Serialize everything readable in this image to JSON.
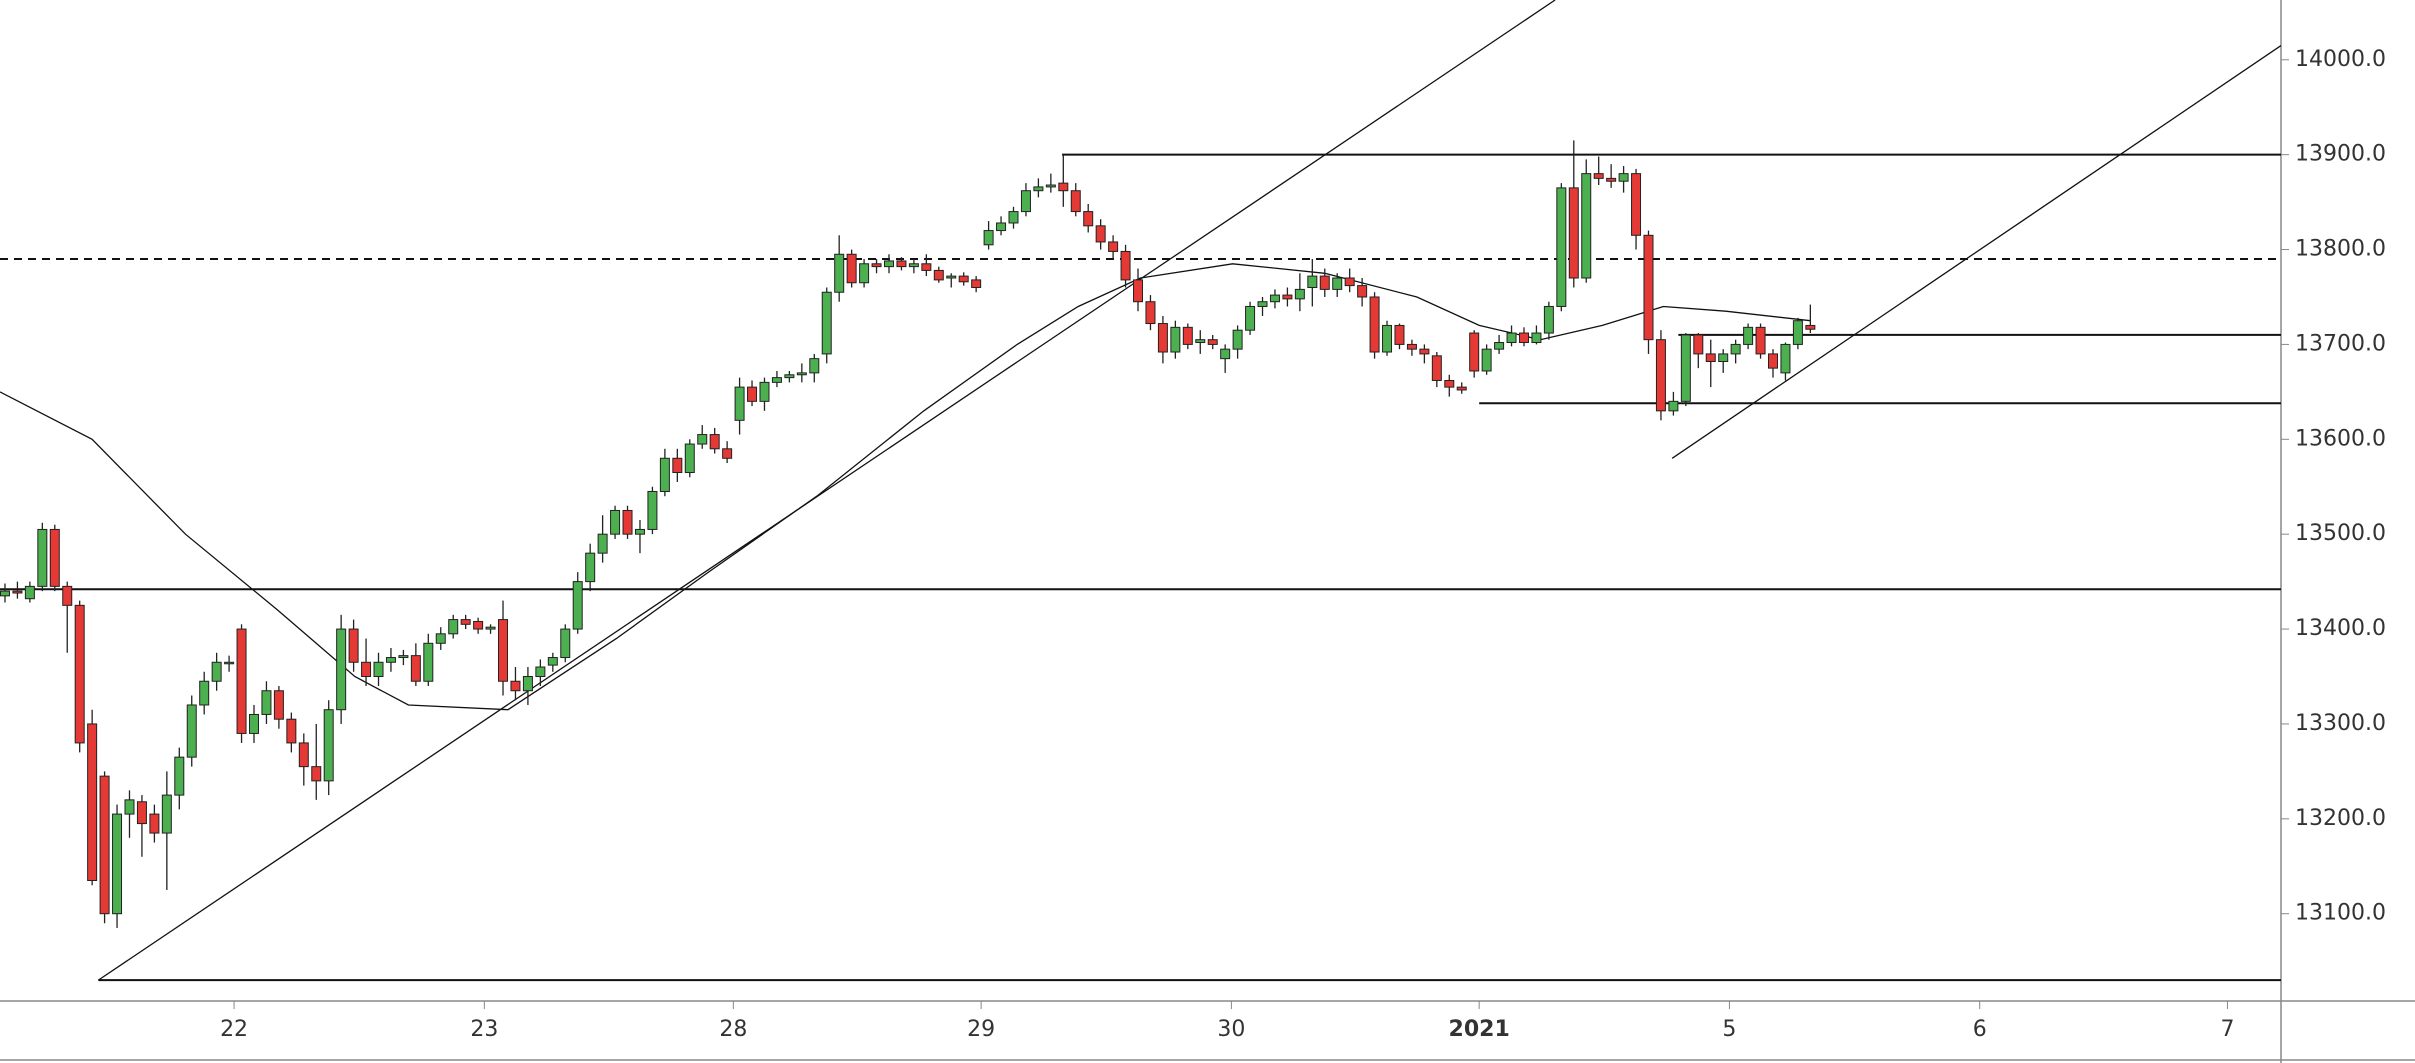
{
  "chart_data": {
    "type": "candlestick",
    "colors": {
      "up": "#4caf50",
      "down": "#e53935",
      "outline": "#222222",
      "line": "#111111"
    },
    "xlim": [
      -0.4,
      182.8
    ],
    "ylim": [
      13008,
      14063
    ],
    "xticks": [
      {
        "value": 18.4,
        "label": "22"
      },
      {
        "value": 38.5,
        "label": "23"
      },
      {
        "value": 58.5,
        "label": "28"
      },
      {
        "value": 78.4,
        "label": "29"
      },
      {
        "value": 98.5,
        "label": "30"
      },
      {
        "value": 118.4,
        "label": "2021"
      },
      {
        "value": 138.5,
        "label": "5"
      },
      {
        "value": 158.6,
        "label": "6"
      },
      {
        "value": 178.5,
        "label": "7"
      }
    ],
    "yticks": [
      {
        "value": 13100,
        "label": "13100.0"
      },
      {
        "value": 13200,
        "label": "13200.0"
      },
      {
        "value": 13300,
        "label": "13300.0"
      },
      {
        "value": 13400,
        "label": "13400.0"
      },
      {
        "value": 13500,
        "label": "13500.0"
      },
      {
        "value": 13600,
        "label": "13600.0"
      },
      {
        "value": 13700,
        "label": "13700.0"
      },
      {
        "value": 13800,
        "label": "13800.0"
      },
      {
        "value": 13900,
        "label": "13900.0"
      },
      {
        "value": 14000,
        "label": "14000.0"
      }
    ],
    "x": [
      0,
      1,
      2,
      3,
      4,
      5,
      6,
      7,
      8,
      9,
      10,
      11,
      12,
      13,
      14,
      15,
      16,
      17,
      18,
      19,
      20,
      21,
      22,
      23,
      24,
      25,
      26,
      27,
      28,
      29,
      30,
      31,
      32,
      33,
      34,
      35,
      36,
      37,
      38,
      39,
      40,
      41,
      42,
      43,
      44,
      45,
      46,
      47,
      48,
      49,
      50,
      51,
      52,
      53,
      54,
      55,
      56,
      57,
      58,
      59,
      60,
      61,
      62,
      63,
      64,
      65,
      66,
      67,
      68,
      69,
      70,
      71,
      72,
      73,
      74,
      75,
      76,
      77,
      78,
      79,
      80,
      81,
      82,
      83,
      84,
      85,
      86,
      87,
      88,
      89,
      90,
      91,
      92,
      93,
      94,
      95,
      96,
      97,
      98,
      99,
      100,
      101,
      102,
      103,
      104,
      105,
      106,
      107,
      108,
      109,
      110,
      111,
      112,
      113,
      114,
      115,
      116,
      117,
      118,
      119,
      120,
      121,
      122,
      123,
      124,
      125,
      126,
      127,
      128,
      129,
      130,
      131,
      132,
      133,
      134,
      135,
      136,
      137,
      138,
      139,
      140,
      141,
      142,
      143,
      144,
      145
    ],
    "candles": [
      [
        13435,
        13448,
        13428,
        13440
      ],
      [
        13440,
        13450,
        13432,
        13438
      ],
      [
        13432,
        13450,
        13428,
        13445
      ],
      [
        13445,
        13512,
        13440,
        13505
      ],
      [
        13505,
        13510,
        13440,
        13445
      ],
      [
        13445,
        13450,
        13375,
        13425
      ],
      [
        13425,
        13430,
        13270,
        13280
      ],
      [
        13300,
        13315,
        13130,
        13135
      ],
      [
        13245,
        13250,
        13090,
        13100
      ],
      [
        13100,
        13215,
        13085,
        13205
      ],
      [
        13205,
        13230,
        13180,
        13220
      ],
      [
        13218,
        13225,
        13160,
        13195
      ],
      [
        13205,
        13215,
        13175,
        13185
      ],
      [
        13185,
        13250,
        13125,
        13225
      ],
      [
        13225,
        13275,
        13210,
        13265
      ],
      [
        13265,
        13330,
        13255,
        13320
      ],
      [
        13320,
        13355,
        13310,
        13345
      ],
      [
        13345,
        13375,
        13335,
        13365
      ],
      [
        13365,
        13372,
        13355,
        13365
      ],
      [
        13400,
        13405,
        13280,
        13290
      ],
      [
        13290,
        13320,
        13280,
        13310
      ],
      [
        13310,
        13345,
        13300,
        13335
      ],
      [
        13335,
        13340,
        13295,
        13305
      ],
      [
        13305,
        13312,
        13270,
        13280
      ],
      [
        13280,
        13290,
        13235,
        13255
      ],
      [
        13255,
        13300,
        13220,
        13240
      ],
      [
        13240,
        13325,
        13225,
        13315
      ],
      [
        13315,
        13415,
        13300,
        13400
      ],
      [
        13400,
        13410,
        13355,
        13365
      ],
      [
        13365,
        13390,
        13340,
        13350
      ],
      [
        13350,
        13375,
        13340,
        13365
      ],
      [
        13365,
        13380,
        13355,
        13370
      ],
      [
        13370,
        13378,
        13362,
        13372
      ],
      [
        13372,
        13385,
        13340,
        13345
      ],
      [
        13345,
        13395,
        13340,
        13385
      ],
      [
        13385,
        13402,
        13378,
        13395
      ],
      [
        13395,
        13415,
        13390,
        13410
      ],
      [
        13410,
        13415,
        13400,
        13405
      ],
      [
        13408,
        13412,
        13395,
        13400
      ],
      [
        13400,
        13405,
        13395,
        13402
      ],
      [
        13410,
        13430,
        13330,
        13345
      ],
      [
        13345,
        13360,
        13325,
        13335
      ],
      [
        13335,
        13360,
        13320,
        13350
      ],
      [
        13350,
        13368,
        13340,
        13360
      ],
      [
        13362,
        13375,
        13355,
        13370
      ],
      [
        13370,
        13405,
        13365,
        13400
      ],
      [
        13400,
        13460,
        13395,
        13450
      ],
      [
        13450,
        13490,
        13440,
        13480
      ],
      [
        13480,
        13520,
        13470,
        13500
      ],
      [
        13500,
        13530,
        13495,
        13525
      ],
      [
        13525,
        13530,
        13495,
        13500
      ],
      [
        13500,
        13515,
        13480,
        13505
      ],
      [
        13505,
        13550,
        13500,
        13545
      ],
      [
        13545,
        13590,
        13540,
        13580
      ],
      [
        13580,
        13590,
        13555,
        13565
      ],
      [
        13565,
        13600,
        13560,
        13595
      ],
      [
        13595,
        13615,
        13590,
        13605
      ],
      [
        13605,
        13612,
        13585,
        13590
      ],
      [
        13590,
        13598,
        13575,
        13580
      ],
      [
        13620,
        13665,
        13605,
        13655
      ],
      [
        13655,
        13662,
        13635,
        13640
      ],
      [
        13640,
        13665,
        13630,
        13660
      ],
      [
        13660,
        13672,
        13655,
        13665
      ],
      [
        13665,
        13672,
        13660,
        13668
      ],
      [
        13668,
        13680,
        13660,
        13670
      ],
      [
        13670,
        13690,
        13660,
        13685
      ],
      [
        13690,
        13760,
        13680,
        13755
      ],
      [
        13755,
        13815,
        13745,
        13795
      ],
      [
        13795,
        13800,
        13760,
        13765
      ],
      [
        13765,
        13790,
        13760,
        13785
      ],
      [
        13785,
        13790,
        13775,
        13782
      ],
      [
        13782,
        13795,
        13775,
        13788
      ],
      [
        13788,
        13792,
        13778,
        13782
      ],
      [
        13782,
        13790,
        13775,
        13785
      ],
      [
        13785,
        13795,
        13772,
        13778
      ],
      [
        13778,
        13782,
        13765,
        13768
      ],
      [
        13770,
        13775,
        13760,
        13772
      ],
      [
        13772,
        13776,
        13762,
        13766
      ],
      [
        13768,
        13772,
        13755,
        13760
      ],
      [
        13805,
        13830,
        13800,
        13820
      ],
      [
        13820,
        13835,
        13815,
        13828
      ],
      [
        13828,
        13845,
        13822,
        13840
      ],
      [
        13840,
        13870,
        13835,
        13862
      ],
      [
        13862,
        13875,
        13855,
        13866
      ],
      [
        13866,
        13880,
        13860,
        13868
      ],
      [
        13870,
        13900,
        13845,
        13862
      ],
      [
        13862,
        13870,
        13835,
        13840
      ],
      [
        13840,
        13848,
        13818,
        13825
      ],
      [
        13825,
        13832,
        13800,
        13808
      ],
      [
        13808,
        13815,
        13790,
        13798
      ],
      [
        13798,
        13805,
        13760,
        13768
      ],
      [
        13768,
        13780,
        13735,
        13745
      ],
      [
        13745,
        13752,
        13715,
        13722
      ],
      [
        13722,
        13730,
        13680,
        13692
      ],
      [
        13692,
        13725,
        13685,
        13718
      ],
      [
        13718,
        13722,
        13695,
        13700
      ],
      [
        13702,
        13715,
        13690,
        13705
      ],
      [
        13705,
        13710,
        13695,
        13700
      ],
      [
        13685,
        13700,
        13670,
        13695
      ],
      [
        13695,
        13720,
        13685,
        13715
      ],
      [
        13715,
        13745,
        13710,
        13740
      ],
      [
        13740,
        13750,
        13730,
        13745
      ],
      [
        13745,
        13758,
        13738,
        13752
      ],
      [
        13752,
        13760,
        13740,
        13748
      ],
      [
        13748,
        13775,
        13735,
        13758
      ],
      [
        13760,
        13790,
        13740,
        13772
      ],
      [
        13772,
        13780,
        13750,
        13758
      ],
      [
        13758,
        13775,
        13750,
        13770
      ],
      [
        13770,
        13780,
        13755,
        13762
      ],
      [
        13762,
        13770,
        13740,
        13750
      ],
      [
        13750,
        13755,
        13685,
        13692
      ],
      [
        13692,
        13725,
        13688,
        13720
      ],
      [
        13720,
        13722,
        13695,
        13700
      ],
      [
        13700,
        13705,
        13688,
        13695
      ],
      [
        13695,
        13700,
        13680,
        13690
      ],
      [
        13688,
        13692,
        13655,
        13662
      ],
      [
        13662,
        13668,
        13645,
        13655
      ],
      [
        13655,
        13660,
        13648,
        13652
      ],
      [
        13712,
        13715,
        13665,
        13672
      ],
      [
        13672,
        13700,
        13668,
        13695
      ],
      [
        13695,
        13710,
        13690,
        13702
      ],
      [
        13702,
        13720,
        13698,
        13712
      ],
      [
        13712,
        13718,
        13698,
        13702
      ],
      [
        13702,
        13720,
        13700,
        13712
      ],
      [
        13712,
        13745,
        13705,
        13740
      ],
      [
        13740,
        13870,
        13735,
        13865
      ],
      [
        13865,
        13915,
        13760,
        13770
      ],
      [
        13770,
        13895,
        13765,
        13880
      ],
      [
        13880,
        13898,
        13868,
        13875
      ],
      [
        13875,
        13890,
        13865,
        13872
      ],
      [
        13872,
        13888,
        13860,
        13880
      ],
      [
        13880,
        13885,
        13800,
        13815
      ],
      [
        13815,
        13820,
        13690,
        13705
      ],
      [
        13705,
        13715,
        13620,
        13630
      ],
      [
        13630,
        13650,
        13625,
        13640
      ],
      [
        13640,
        13712,
        13635,
        13710
      ],
      [
        13710,
        13712,
        13675,
        13690
      ],
      [
        13690,
        13705,
        13655,
        13682
      ],
      [
        13682,
        13695,
        13670,
        13690
      ],
      [
        13690,
        13705,
        13680,
        13700
      ],
      [
        13700,
        13722,
        13695,
        13718
      ],
      [
        13718,
        13722,
        13685,
        13690
      ],
      [
        13690,
        13695,
        13665,
        13675
      ],
      [
        13670,
        13702,
        13662,
        13700
      ],
      [
        13700,
        13728,
        13695,
        13725
      ],
      [
        13720,
        13742,
        13712,
        13716
      ]
    ],
    "moving_average": {
      "x": [
        -0.4,
        7,
        14.5,
        21.9,
        28.1,
        32.4,
        40.4,
        49.1,
        56.5,
        65.2,
        73.8,
        81.3,
        86.2,
        91.2,
        98.6,
        106,
        113.4,
        118.4,
        123.3,
        128.3,
        133.2,
        138.2,
        145
      ],
      "values": [
        13650,
        13600,
        13500,
        13420,
        13350,
        13320,
        13315,
        13390,
        13460,
        13540,
        13630,
        13700,
        13740,
        13770,
        13785,
        13775,
        13750,
        13720,
        13705,
        13720,
        13740,
        13735,
        13725
      ]
    },
    "trend_lines": [
      {
        "x": [
          7.5,
          124.5
        ],
        "values": [
          13030,
          14063
        ]
      },
      {
        "x": [
          133.9,
          182.8
        ],
        "values": [
          13580,
          14015
        ]
      }
    ],
    "levels": [
      {
        "value": 13900,
        "x_start": 84.9,
        "style": "solid"
      },
      {
        "value": 13790,
        "x_start": -0.4,
        "style": "dashed"
      },
      {
        "value": 13710,
        "x_start": 134.4,
        "style": "solid"
      },
      {
        "value": 13638,
        "x_start": 118.4,
        "style": "solid"
      },
      {
        "value": 13442,
        "x_start": -0.4,
        "style": "solid"
      },
      {
        "value": 13030,
        "x_start": 7.5,
        "style": "solid"
      }
    ]
  }
}
